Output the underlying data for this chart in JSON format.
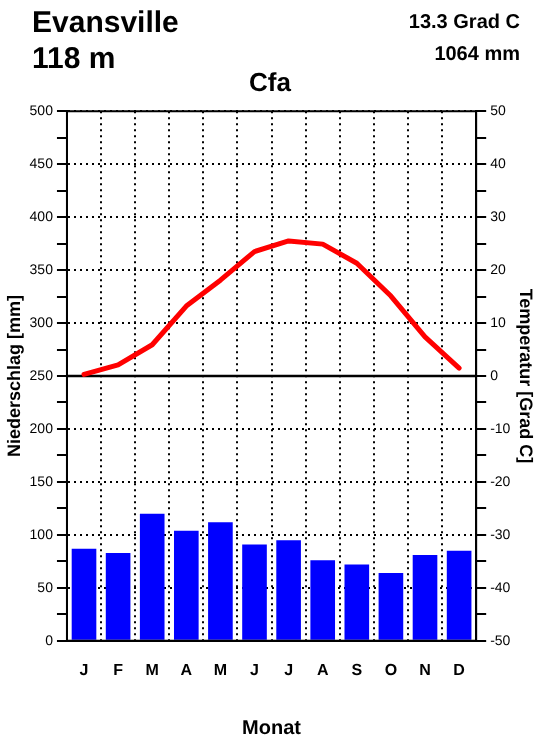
{
  "chart_data": {
    "type": "bar",
    "title": "Cfa",
    "annotations": [
      "Evansville",
      "118 m",
      "13.3 Grad C",
      "1064 mm"
    ],
    "xlabel": "Monat",
    "ylabel": "Niederschlag [mm]",
    "y2label": "Temperatur [Grad C]",
    "categories": [
      "J",
      "F",
      "M",
      "A",
      "M",
      "J",
      "J",
      "A",
      "S",
      "O",
      "N",
      "D"
    ],
    "series": [
      {
        "color": "#0000ff",
        "values": [
          87,
          83,
          120,
          104,
          112,
          91,
          95,
          76,
          72,
          64,
          81,
          85
        ]
      },
      {
        "type": "line",
        "axis": "y2",
        "color": "#ff0000",
        "values": [
          0.3,
          2.1,
          5.9,
          13.2,
          18.1,
          23.5,
          25.5,
          24.9,
          21.3,
          15.1,
          7.4,
          1.5
        ]
      }
    ],
    "ylim": [
      0,
      500
    ],
    "yticks": [
      0,
      {
        "value": 25,
        "label": null
      },
      50,
      {
        "value": 75,
        "label": null
      },
      100,
      {
        "value": 125,
        "label": null
      },
      150,
      {
        "value": 175,
        "label": null
      },
      200,
      {
        "value": 225,
        "label": null
      },
      250,
      {
        "value": 275,
        "label": null
      },
      300,
      {
        "value": 325,
        "label": null
      },
      350,
      {
        "value": 375,
        "label": null
      },
      400,
      {
        "value": 425,
        "label": null
      },
      450,
      {
        "value": 475,
        "label": null
      },
      500
    ],
    "y2lim": [
      -50,
      50
    ],
    "y2ticks": [
      -50,
      {
        "value": -45,
        "label": null
      },
      -40,
      {
        "value": -35,
        "label": null
      },
      -30,
      {
        "value": -25,
        "label": null
      },
      -20,
      {
        "value": -15,
        "label": null
      },
      -10,
      {
        "value": -5,
        "label": null
      },
      0,
      {
        "value": 5,
        "label": null
      },
      10,
      {
        "value": 15,
        "label": null
      },
      20,
      {
        "value": 25,
        "label": null
      },
      30,
      {
        "value": 35,
        "label": null
      },
      40,
      {
        "value": 45,
        "label": null
      },
      50
    ],
    "ref_lines": [
      {
        "axis": "y2",
        "value": 0,
        "color": "#000000",
        "line_style": "solid"
      }
    ],
    "grid": true,
    "legend": false,
    "marker": "none",
    "line_style": "solid"
  }
}
